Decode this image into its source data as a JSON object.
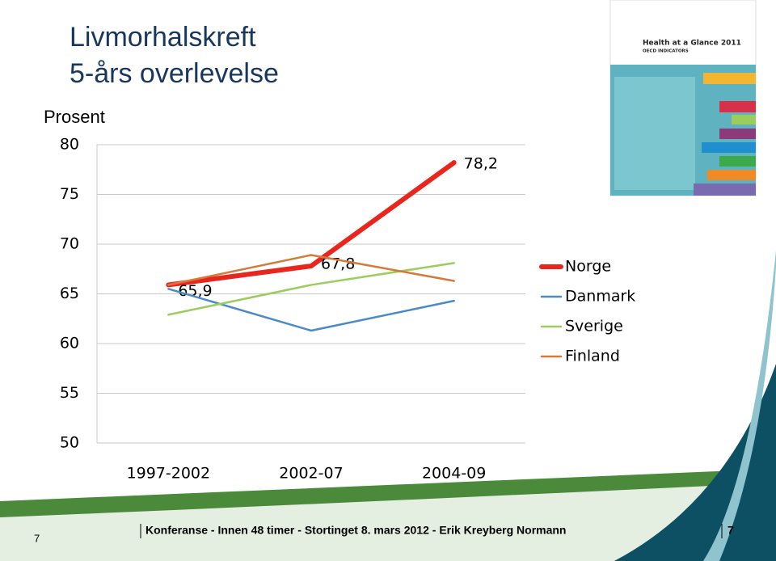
{
  "chart_data": {
    "type": "line",
    "title": "Livmorhalskreft",
    "subtitle": "5-års overlevelse",
    "y_label": "Prosent",
    "categories": [
      "1997-2002",
      "2002-07",
      "2004-09"
    ],
    "series": [
      {
        "name": "Norge",
        "color": "#e8261e",
        "values": [
          65.9,
          67.8,
          78.2
        ],
        "value_labels": [
          "65,9",
          "67,8",
          "78,2"
        ]
      },
      {
        "name": "Danmark",
        "color": "#4a8ac6",
        "values": [
          65.5,
          61.3,
          64.3
        ]
      },
      {
        "name": "Sverige",
        "color": "#9acd5b",
        "values": [
          62.9,
          65.9,
          68.1
        ]
      },
      {
        "name": "Finland",
        "color": "#d47a3a",
        "values": [
          65.9,
          68.9,
          66.3
        ]
      }
    ],
    "ylim": [
      50,
      80
    ],
    "yticks": [
      50,
      55,
      60,
      65,
      70,
      75,
      80
    ],
    "grid": true,
    "legend": "right"
  },
  "cover": {
    "title": "Health at a Glance 2011",
    "subtitle": "OECD INDICATORS"
  },
  "footer": {
    "text": "Konferanse - Innen 48 timer - Stortinget 8. mars 2012 - Erik Kreyberg Normann",
    "page_left": "7",
    "page_right": "7"
  }
}
